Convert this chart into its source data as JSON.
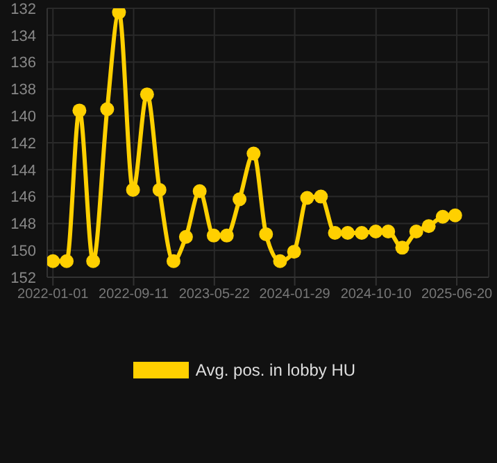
{
  "chart_data": {
    "type": "line",
    "x": [
      "2022-01-01",
      "2022-02-13",
      "2022-03-25",
      "2022-05-07",
      "2022-06-20",
      "2022-07-27",
      "2022-09-09",
      "2022-10-23",
      "2022-12-01",
      "2023-01-14",
      "2023-02-22",
      "2023-04-06",
      "2023-05-20",
      "2023-06-30",
      "2023-08-09",
      "2023-09-22",
      "2023-10-31",
      "2023-12-14",
      "2024-01-27",
      "2024-03-08",
      "2024-04-20",
      "2024-06-03",
      "2024-07-13",
      "2024-08-26",
      "2024-10-09",
      "2024-11-17",
      "2024-12-31",
      "2025-02-13",
      "2025-03-24",
      "2025-05-07",
      "2025-06-15"
    ],
    "series": [
      {
        "name": "Avg. pos. in lobby HU",
        "color": "#ffd000",
        "values": [
          150.8,
          150.8,
          139.6,
          150.8,
          139.5,
          132.3,
          145.5,
          138.4,
          145.5,
          150.8,
          149.0,
          145.6,
          148.9,
          148.9,
          146.2,
          142.8,
          148.8,
          150.8,
          150.1,
          146.1,
          146.0,
          148.7,
          148.7,
          148.7,
          148.6,
          148.6,
          149.8,
          148.6,
          148.2,
          147.5,
          147.4
        ]
      }
    ],
    "xlim": [
      "2021-12-14",
      "2025-09-28"
    ],
    "xticks": [
      "2022-01-01",
      "2022-09-11",
      "2023-05-22",
      "2024-01-29",
      "2024-10-10",
      "2025-06-20"
    ],
    "ylim": [
      152,
      132
    ],
    "yticks": [
      132,
      134,
      136,
      138,
      140,
      142,
      144,
      146,
      148,
      150,
      152
    ],
    "grid": true,
    "legend": "bottom",
    "marker": "circle",
    "line_style": "solid"
  }
}
